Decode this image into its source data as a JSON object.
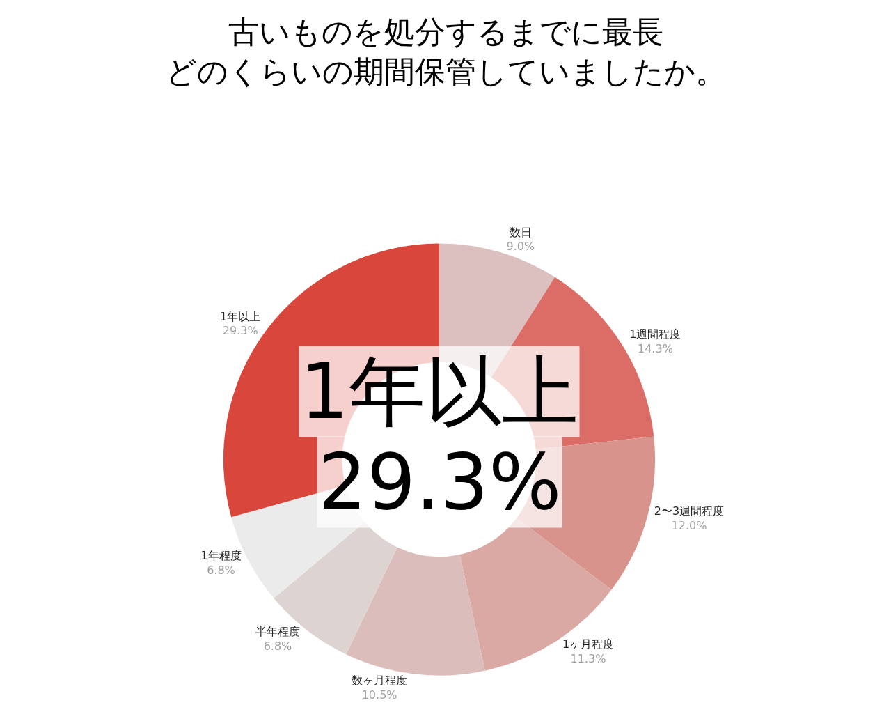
{
  "chart_data": {
    "type": "donut",
    "title": "古いものを処分するまでに最長",
    "subtitle": "どのくらいの期間保管していましたか。",
    "categories": [
      "数日",
      "1週間程度",
      "2〜3週間程度",
      "1ヶ月程度",
      "数ヶ月程度",
      "半年程度",
      "1年程度",
      "1年以上"
    ],
    "values": [
      9.0,
      14.3,
      12.0,
      11.3,
      10.5,
      6.8,
      6.8,
      29.3
    ],
    "value_labels": [
      "9.0%",
      "14.3%",
      "12.0%",
      "11.3%",
      "10.5%",
      "6.8%",
      "6.8%",
      "29.3%"
    ],
    "colors": [
      "#dbc0bf",
      "#dc6c66",
      "#d9938d",
      "#dba9a4",
      "#dbbdbb",
      "#ddd4d2",
      "#ebebeb",
      "#d9463b"
    ],
    "annotations": [
      "1年以上",
      "29.3%"
    ],
    "legend": false
  }
}
